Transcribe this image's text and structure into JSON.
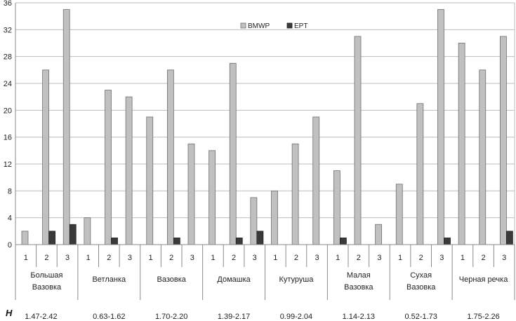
{
  "chart_data": {
    "type": "bar",
    "ylim": [
      0,
      36
    ],
    "yticks": [
      "0",
      "4",
      "8",
      "12",
      "16",
      "20",
      "24",
      "28",
      "32",
      "36"
    ],
    "grid": true,
    "legend_position": "top-center",
    "colors": {
      "BMWP": "#c0c0c0",
      "EPT": "#3a3a3a"
    },
    "series": [
      {
        "name": "BMWP",
        "values": [
          2,
          26,
          35,
          4,
          23,
          22,
          19,
          26,
          15,
          14,
          27,
          7,
          8,
          15,
          19,
          11,
          31,
          3,
          9,
          21,
          35,
          30,
          26,
          31
        ]
      },
      {
        "name": "EPT",
        "values": [
          0,
          2,
          3,
          0,
          1,
          0,
          0,
          1,
          0,
          0,
          1,
          2,
          0,
          0,
          0,
          1,
          0,
          0,
          0,
          0,
          1,
          0,
          0,
          2
        ]
      }
    ],
    "site_labels": [
      "1",
      "2",
      "3"
    ],
    "groups": [
      {
        "name": [
          "Большая",
          "Вазовка"
        ],
        "H": "1.47-2.42"
      },
      {
        "name": [
          "Ветланка"
        ],
        "H": "0.63-1.62"
      },
      {
        "name": [
          "Вазовка"
        ],
        "H": "1.70-2.20"
      },
      {
        "name": [
          "Домашка"
        ],
        "H": "1.39-2.17"
      },
      {
        "name": [
          "Кутуруша"
        ],
        "H": "0.99-2.04"
      },
      {
        "name": [
          "Малая",
          "Вазовка"
        ],
        "H": "1.14-2.13"
      },
      {
        "name": [
          "Сухая",
          "Вазовка"
        ],
        "H": "0.52-1.73"
      },
      {
        "name": [
          "Черная речка"
        ],
        "H": "1.75-2.26"
      }
    ],
    "h_label": "H"
  }
}
